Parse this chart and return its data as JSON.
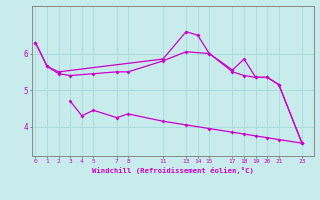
{
  "xlabel": "Windchill (Refroidissement éolien,°C)",
  "bg_color": "#c8ecec",
  "grid_color": "#aadddd",
  "line_color": "#cc00cc",
  "spine_color": "#888888",
  "xticks": [
    0,
    1,
    2,
    3,
    4,
    5,
    7,
    8,
    11,
    13,
    14,
    15,
    17,
    18,
    19,
    20,
    21,
    23
  ],
  "yticks": [
    4,
    5,
    6
  ],
  "ylim": [
    3.2,
    7.3
  ],
  "xlim": [
    -0.3,
    24.0
  ],
  "series": [
    {
      "x": [
        0,
        1,
        2,
        11,
        13,
        14,
        15,
        17,
        18,
        19,
        20,
        21,
        23
      ],
      "y": [
        6.3,
        5.65,
        5.5,
        5.85,
        6.6,
        6.5,
        6.0,
        5.55,
        5.85,
        5.35,
        5.35,
        5.15,
        3.55
      ]
    },
    {
      "x": [
        0,
        1,
        2,
        3,
        5,
        7,
        8,
        11,
        13,
        15,
        17,
        18,
        19,
        20,
        21,
        23
      ],
      "y": [
        6.3,
        5.65,
        5.45,
        5.4,
        5.45,
        5.5,
        5.5,
        5.8,
        6.05,
        6.0,
        5.5,
        5.4,
        5.35,
        5.35,
        5.15,
        3.55
      ]
    },
    {
      "x": [
        3,
        4,
        5,
        7,
        8,
        11,
        13,
        15,
        17,
        18,
        19,
        20,
        21,
        23
      ],
      "y": [
        4.7,
        4.3,
        4.45,
        4.25,
        4.35,
        4.15,
        4.05,
        3.95,
        3.85,
        3.8,
        3.75,
        3.7,
        3.65,
        3.55
      ]
    }
  ]
}
